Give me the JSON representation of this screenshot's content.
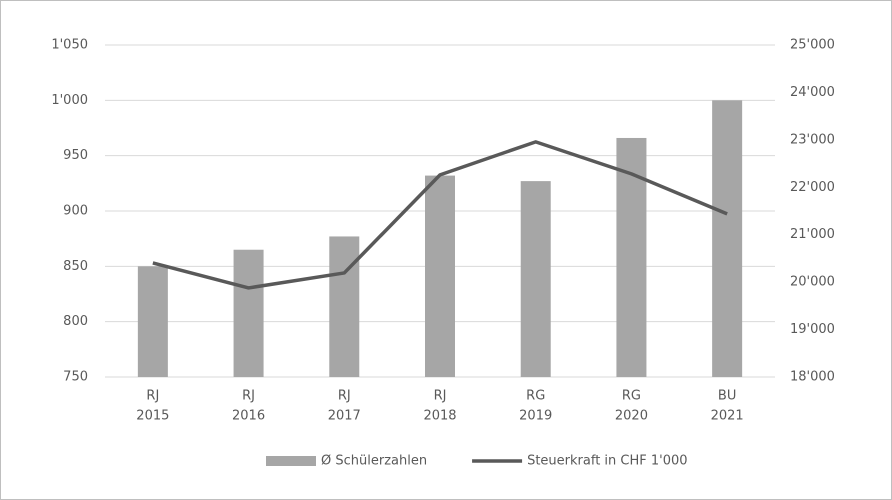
{
  "chart_data": {
    "type": "bar",
    "categories": [
      [
        "RJ",
        "2015"
      ],
      [
        "RJ",
        "2016"
      ],
      [
        "RJ",
        "2017"
      ],
      [
        "RJ",
        "2018"
      ],
      [
        "RG",
        "2019"
      ],
      [
        "RG",
        "2020"
      ],
      [
        "BU",
        "2021"
      ]
    ],
    "series": [
      {
        "name": "Ø Schülerzahlen",
        "type": "bar",
        "color": "#a6a6a6",
        "values": [
          850,
          865,
          877,
          932,
          927,
          966,
          1000
        ]
      },
      {
        "name": "Steuerkraft in CHF 1'000",
        "type": "line",
        "axis": "y2",
        "color": "#595959",
        "values": [
          20405,
          19878,
          20194,
          22262,
          22958,
          22283,
          21439
        ]
      }
    ],
    "ylim": [
      750,
      1050
    ],
    "yticks": [
      750,
      800,
      850,
      900,
      950,
      {
        "value": 1000,
        "label": "1'000"
      },
      {
        "value": 1050,
        "label": "1'050"
      }
    ],
    "y2lim": [
      18000,
      25000
    ],
    "y2ticks": [
      {
        "value": 18000,
        "label": "18'000"
      },
      {
        "value": 19000,
        "label": "19'000"
      },
      {
        "value": 20000,
        "label": "20'000"
      },
      {
        "value": 21000,
        "label": "21'000"
      },
      {
        "value": 22000,
        "label": "22'000"
      },
      {
        "value": 23000,
        "label": "23'000"
      },
      {
        "value": 24000,
        "label": "24'000"
      },
      {
        "value": 25000,
        "label": "25'000"
      }
    ],
    "grid": true,
    "legend": "bottom"
  }
}
